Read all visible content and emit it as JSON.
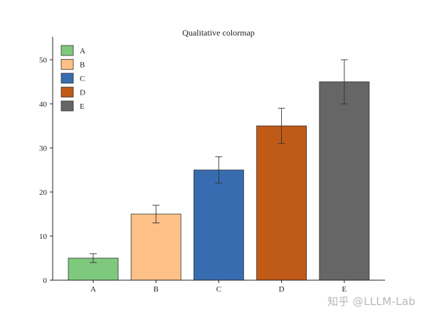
{
  "chart_data": {
    "type": "bar",
    "title": "Qualitative colormap",
    "xlabel": "",
    "ylabel": "",
    "categories": [
      "A",
      "B",
      "C",
      "D",
      "E"
    ],
    "values": [
      5,
      15,
      25,
      35,
      45
    ],
    "errors": [
      1,
      2,
      3,
      4,
      5
    ],
    "colors": [
      "#7fc97f",
      "#fdc086",
      "#386cb0",
      "#c05a17",
      "#666666"
    ],
    "ylim": [
      0,
      55
    ],
    "yticks": [
      0,
      10,
      20,
      30,
      40,
      50
    ],
    "grid": false,
    "legend": {
      "placement": "top-left",
      "entries": [
        "A",
        "B",
        "C",
        "D",
        "E"
      ]
    }
  },
  "watermark": "知乎 @LLLM-Lab"
}
